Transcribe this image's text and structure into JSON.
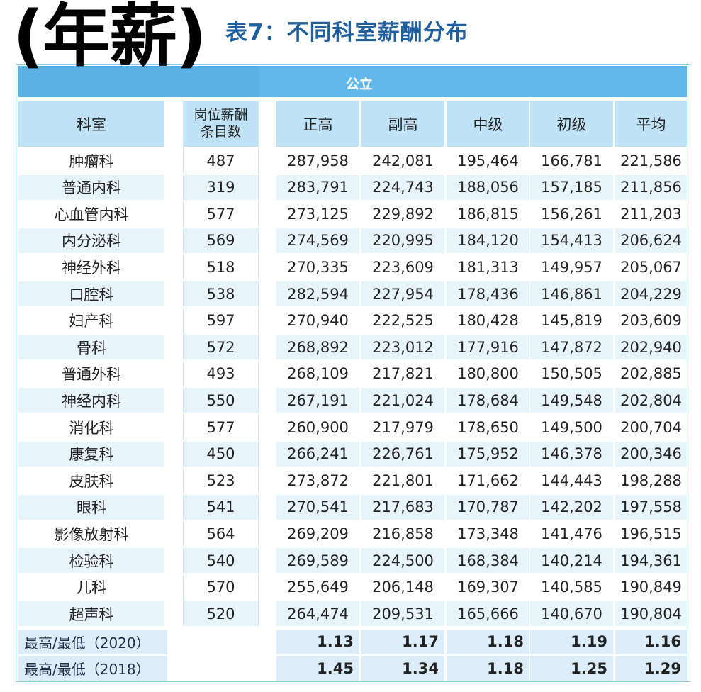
{
  "overlay_title": "(年薪)",
  "table_title": "表7：不同科室薪酬分布",
  "group_header": "公立",
  "headers": {
    "dept": "科室",
    "count_line1": "岗位薪酬",
    "count_line2": "条目数",
    "zhenggao": "正高",
    "fugao": "副高",
    "zhongji": "中级",
    "chuji": "初级",
    "pingjun": "平均"
  },
  "rows": [
    {
      "dept": "肿瘤科",
      "count": "487",
      "v1": "287,958",
      "v2": "242,081",
      "v3": "195,464",
      "v4": "166,781",
      "v5": "221,586"
    },
    {
      "dept": "普通内科",
      "count": "319",
      "v1": "283,791",
      "v2": "224,743",
      "v3": "188,056",
      "v4": "157,185",
      "v5": "211,856"
    },
    {
      "dept": "心血管内科",
      "count": "577",
      "v1": "273,125",
      "v2": "229,892",
      "v3": "186,815",
      "v4": "156,261",
      "v5": "211,203"
    },
    {
      "dept": "内分泌科",
      "count": "569",
      "v1": "274,569",
      "v2": "220,995",
      "v3": "184,120",
      "v4": "154,413",
      "v5": "206,624"
    },
    {
      "dept": "神经外科",
      "count": "518",
      "v1": "270,335",
      "v2": "223,609",
      "v3": "181,313",
      "v4": "149,957",
      "v5": "205,067"
    },
    {
      "dept": "口腔科",
      "count": "538",
      "v1": "282,594",
      "v2": "227,954",
      "v3": "178,436",
      "v4": "146,861",
      "v5": "204,229"
    },
    {
      "dept": "妇产科",
      "count": "597",
      "v1": "270,940",
      "v2": "222,525",
      "v3": "180,428",
      "v4": "145,819",
      "v5": "203,609"
    },
    {
      "dept": "骨科",
      "count": "572",
      "v1": "268,892",
      "v2": "223,012",
      "v3": "177,916",
      "v4": "147,872",
      "v5": "202,940"
    },
    {
      "dept": "普通外科",
      "count": "493",
      "v1": "268,109",
      "v2": "217,821",
      "v3": "180,800",
      "v4": "150,505",
      "v5": "202,885"
    },
    {
      "dept": "神经内科",
      "count": "550",
      "v1": "267,191",
      "v2": "221,024",
      "v3": "178,684",
      "v4": "149,548",
      "v5": "202,804"
    },
    {
      "dept": "消化科",
      "count": "577",
      "v1": "260,900",
      "v2": "217,979",
      "v3": "178,650",
      "v4": "149,500",
      "v5": "200,704"
    },
    {
      "dept": "康复科",
      "count": "450",
      "v1": "266,241",
      "v2": "226,761",
      "v3": "175,952",
      "v4": "146,378",
      "v5": "200,346"
    },
    {
      "dept": "皮肤科",
      "count": "523",
      "v1": "273,872",
      "v2": "221,801",
      "v3": "171,662",
      "v4": "144,443",
      "v5": "198,288"
    },
    {
      "dept": "眼科",
      "count": "541",
      "v1": "270,541",
      "v2": "217,683",
      "v3": "170,787",
      "v4": "142,202",
      "v5": "197,558"
    },
    {
      "dept": "影像放射科",
      "count": "564",
      "v1": "269,209",
      "v2": "216,858",
      "v3": "173,348",
      "v4": "141,476",
      "v5": "196,515"
    },
    {
      "dept": "检验科",
      "count": "540",
      "v1": "269,589",
      "v2": "224,500",
      "v3": "168,384",
      "v4": "140,214",
      "v5": "194,361"
    },
    {
      "dept": "儿科",
      "count": "570",
      "v1": "255,649",
      "v2": "206,148",
      "v3": "169,307",
      "v4": "140,585",
      "v5": "190,849"
    },
    {
      "dept": "超声科",
      "count": "520",
      "v1": "264,474",
      "v2": "209,531",
      "v3": "165,666",
      "v4": "140,670",
      "v5": "190,804"
    }
  ],
  "summary": [
    {
      "label": "最高/最低（2020）",
      "v1": "1.13",
      "v2": "1.17",
      "v3": "1.18",
      "v4": "1.19",
      "v5": "1.16"
    },
    {
      "label": "最高/最低（2018）",
      "v1": "1.45",
      "v2": "1.34",
      "v3": "1.18",
      "v4": "1.25",
      "v5": "1.29"
    }
  ]
}
